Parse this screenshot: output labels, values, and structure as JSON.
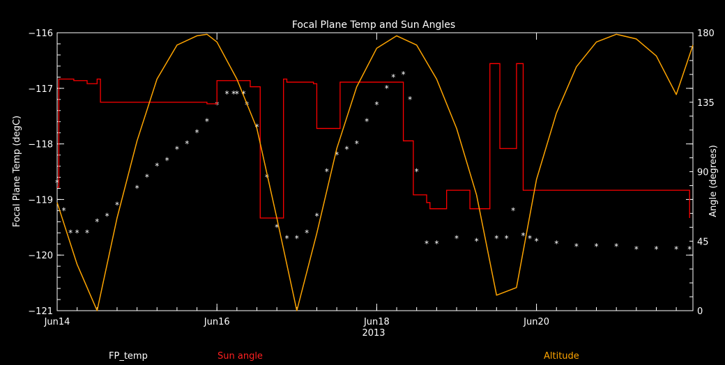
{
  "chart_data": {
    "type": "line",
    "title": "Focal Plane Temp and Sun Angles",
    "xlabel": "2013",
    "ylabel_left": "Focal Plane Temp (degC)",
    "ylabel_right": "Angle (degrees)",
    "x_unit": "days",
    "xlim": [
      "2013-06-14T00:00",
      "2013-06-21T23:00"
    ],
    "ylim_left": [
      -121,
      -116
    ],
    "ylim_right": [
      0,
      180
    ],
    "x_ticks": [
      "Jun14",
      "Jun16",
      "Jun18",
      "Jun20"
    ],
    "y_ticks_left": [
      "-116",
      "-117",
      "-118",
      "-119",
      "-120",
      "-121"
    ],
    "y_ticks_right": [
      "180",
      "135",
      "90",
      "45",
      "0"
    ],
    "legend": [
      {
        "name": "FP_temp",
        "color": "#ffffff"
      },
      {
        "name": "Sun angle",
        "color": "#ff0000"
      },
      {
        "name": "Altitude",
        "color": "#ffa500"
      }
    ],
    "series": [
      {
        "name": "FP_temp",
        "axis": "left",
        "marker": "asterisk",
        "color": "#ffffff",
        "x": [
          "2013-06-14T00:00",
          "2013-06-14T02:00",
          "2013-06-14T04:00",
          "2013-06-14T06:00",
          "2013-06-14T09:00",
          "2013-06-14T12:00",
          "2013-06-14T15:00",
          "2013-06-14T18:00",
          "2013-06-15T00:00",
          "2013-06-15T03:00",
          "2013-06-15T06:00",
          "2013-06-15T09:00",
          "2013-06-15T12:00",
          "2013-06-15T15:00",
          "2013-06-15T18:00",
          "2013-06-15T21:00",
          "2013-06-16T00:00",
          "2013-06-16T03:00",
          "2013-06-16T05:00",
          "2013-06-16T06:00",
          "2013-06-16T08:00",
          "2013-06-16T09:00",
          "2013-06-16T12:00",
          "2013-06-16T15:00",
          "2013-06-16T18:00",
          "2013-06-16T21:00",
          "2013-06-17T00:00",
          "2013-06-17T03:00",
          "2013-06-17T06:00",
          "2013-06-17T09:00",
          "2013-06-17T12:00",
          "2013-06-17T15:00",
          "2013-06-17T18:00",
          "2013-06-17T21:00",
          "2013-06-18T00:00",
          "2013-06-18T03:00",
          "2013-06-18T05:00",
          "2013-06-18T08:00",
          "2013-06-18T10:00",
          "2013-06-18T12:00",
          "2013-06-18T15:00",
          "2013-06-18T18:00",
          "2013-06-19T00:00",
          "2013-06-19T06:00",
          "2013-06-19T12:00",
          "2013-06-19T15:00",
          "2013-06-19T17:00",
          "2013-06-19T20:00",
          "2013-06-19T22:00",
          "2013-06-20T00:00",
          "2013-06-20T06:00",
          "2013-06-20T12:00",
          "2013-06-20T18:00",
          "2013-06-21T00:00",
          "2013-06-21T06:00",
          "2013-06-21T12:00",
          "2013-06-21T18:00",
          "2013-06-21T22:00"
        ],
        "y": [
          -118.7,
          -119.2,
          -119.6,
          -119.6,
          -119.6,
          -119.4,
          -119.3,
          -119.1,
          -118.8,
          -118.6,
          -118.4,
          -118.3,
          -118.1,
          -118.0,
          -117.8,
          -117.6,
          -117.3,
          -117.1,
          -117.1,
          -117.1,
          -117.1,
          -117.3,
          -117.7,
          -118.6,
          -119.5,
          -119.7,
          -119.7,
          -119.6,
          -119.3,
          -118.5,
          -118.2,
          -118.1,
          -118.0,
          -117.6,
          -117.3,
          -117.0,
          -116.8,
          -116.75,
          -117.2,
          -118.5,
          -119.8,
          -119.8,
          -119.7,
          -119.75,
          -119.7,
          -119.7,
          -119.2,
          -119.65,
          -119.7,
          -119.75,
          -119.8,
          -119.85,
          -119.85,
          -119.85,
          -119.9,
          -119.9,
          -119.9,
          -119.9
        ]
      },
      {
        "name": "Sun angle",
        "axis": "right",
        "color": "#ff0000",
        "x": [
          "2013-06-14T00:00",
          "2013-06-14T00:30",
          "2013-06-14T01:00",
          "2013-06-14T05:00",
          "2013-06-14T09:00",
          "2013-06-14T12:00",
          "2013-06-14T13:00",
          "2013-06-15T00:00",
          "2013-06-15T12:00",
          "2013-06-15T21:00",
          "2013-06-16T00:00",
          "2013-06-16T06:00",
          "2013-06-16T09:00",
          "2013-06-16T10:00",
          "2013-06-16T13:00",
          "2013-06-16T14:00",
          "2013-06-16T20:00",
          "2013-06-16T21:00",
          "2013-06-17T00:00",
          "2013-06-17T05:00",
          "2013-06-17T06:00",
          "2013-06-17T12:00",
          "2013-06-17T13:00",
          "2013-06-17T17:00",
          "2013-06-17T18:00",
          "2013-06-18T00:00",
          "2013-06-18T06:00",
          "2013-06-18T08:00",
          "2013-06-18T11:00",
          "2013-06-18T12:00",
          "2013-06-18T15:00",
          "2013-06-18T16:00",
          "2013-06-18T21:00",
          "2013-06-19T00:00",
          "2013-06-19T04:00",
          "2013-06-19T06:00",
          "2013-06-19T10:00",
          "2013-06-19T12:00",
          "2013-06-19T13:00",
          "2013-06-19T18:00",
          "2013-06-19T19:00",
          "2013-06-19T20:00",
          "2013-06-19T21:00",
          "2013-06-20T00:00",
          "2013-06-20T06:00",
          "2013-06-21T00:00",
          "2013-06-21T06:00",
          "2013-06-21T12:00",
          "2013-06-21T18:00",
          "2013-06-21T22:00"
        ],
        "y": [
          80,
          150,
          150,
          149,
          147,
          150,
          135,
          135,
          135,
          134,
          149,
          149,
          149,
          145,
          60,
          60,
          150,
          148,
          148,
          147,
          118,
          118,
          148,
          148,
          148,
          148,
          148,
          110,
          75,
          75,
          70,
          66,
          78,
          78,
          66,
          66,
          160,
          160,
          105,
          160,
          160,
          78,
          78,
          78,
          78,
          78,
          78,
          78,
          78,
          60
        ]
      },
      {
        "name": "Altitude",
        "axis": "right",
        "color": "#ffa500",
        "x": [
          "2013-06-14T00:00",
          "2013-06-14T06:00",
          "2013-06-14T12:00",
          "2013-06-14T18:00",
          "2013-06-15T00:00",
          "2013-06-15T06:00",
          "2013-06-15T12:00",
          "2013-06-15T18:00",
          "2013-06-15T21:00",
          "2013-06-16T00:00",
          "2013-06-16T06:00",
          "2013-06-16T12:00",
          "2013-06-16T18:00",
          "2013-06-17T00:00",
          "2013-06-17T06:00",
          "2013-06-17T12:00",
          "2013-06-17T18:00",
          "2013-06-18T00:00",
          "2013-06-18T06:00",
          "2013-06-18T12:00",
          "2013-06-18T18:00",
          "2013-06-19T00:00",
          "2013-06-19T06:00",
          "2013-06-19T12:00",
          "2013-06-19T18:00",
          "2013-06-20T00:00",
          "2013-06-20T06:00",
          "2013-06-20T12:00",
          "2013-06-20T18:00",
          "2013-06-21T00:00",
          "2013-06-21T06:00",
          "2013-06-21T12:00",
          "2013-06-21T18:00",
          "2013-06-21T23:00"
        ],
        "y": [
          70,
          30,
          0,
          60,
          110,
          150,
          172,
          178,
          179,
          174,
          150,
          118,
          60,
          0,
          50,
          105,
          145,
          170,
          178,
          172,
          150,
          118,
          75,
          10,
          15,
          85,
          128,
          158,
          174,
          179,
          176,
          165,
          140,
          172
        ]
      }
    ]
  }
}
